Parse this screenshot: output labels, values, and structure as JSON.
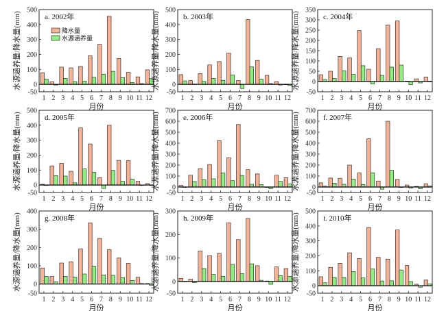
{
  "chart_data": {
    "type": "bar",
    "layout": "3x3 grid",
    "categories": [
      "1",
      "2",
      "3",
      "4",
      "5",
      "6",
      "7",
      "8",
      "9",
      "10",
      "11",
      "12"
    ],
    "xlabel": "月份",
    "ylabel": "水源涵养量/降水量(mm)",
    "legend": {
      "placement": "top-left inside panel a",
      "entries": [
        "降水量",
        "水源涵养量"
      ]
    },
    "colors": {
      "precipitation": "#f7b193",
      "water_conservation": "#8ef07e",
      "edge": "#333333"
    },
    "panels": [
      {
        "title": "a. 2002年",
        "ylim": [
          -50,
          500
        ],
        "yticks": [
          -50,
          0,
          100,
          200,
          300,
          400,
          500
        ],
        "show_legend": true,
        "series": [
          {
            "name": "降水量",
            "values": [
              78,
              17,
              115,
              110,
              120,
              192,
              268,
              455,
              173,
              80,
              50,
              97
            ]
          },
          {
            "name": "水源涵养量",
            "values": [
              35,
              -5,
              40,
              18,
              22,
              47,
              68,
              87,
              45,
              12,
              5,
              38
            ]
          }
        ]
      },
      {
        "title": "b. 2003年",
        "ylim": [
          -50,
          500
        ],
        "yticks": [
          -50,
          0,
          100,
          200,
          300,
          400,
          500
        ],
        "series": [
          {
            "name": "降水量",
            "values": [
              65,
              25,
              72,
              130,
              152,
              210,
              25,
              433,
              160,
              60,
              18,
              0
            ]
          },
          {
            "name": "水源涵养量",
            "values": [
              23,
              2,
              20,
              40,
              27,
              63,
              -28,
              117,
              35,
              5,
              -5,
              -8
            ]
          }
        ]
      },
      {
        "title": "c. 2004年",
        "ylim": [
          -50,
          350
        ],
        "yticks": [
          -50,
          0,
          50,
          100,
          150,
          200,
          250,
          300,
          350
        ],
        "series": [
          {
            "name": "降水量",
            "values": [
              33,
              50,
              122,
              115,
              248,
              60,
              160,
              275,
              295,
              2,
              13,
              22
            ]
          },
          {
            "name": "水源涵养量",
            "values": [
              10,
              15,
              52,
              35,
              77,
              -12,
              30,
              70,
              80,
              -15,
              -7,
              0
            ]
          }
        ]
      },
      {
        "title": "d. 2005年",
        "ylim": [
          -50,
          500
        ],
        "yticks": [
          -50,
          0,
          100,
          200,
          300,
          400,
          500
        ],
        "series": [
          {
            "name": "降水量",
            "values": [
              5,
              128,
              145,
              92,
              382,
              275,
              50,
              400,
              165,
              163,
              25,
              10
            ]
          },
          {
            "name": "水源涵养量",
            "values": [
              -3,
              63,
              60,
              15,
              108,
              85,
              -23,
              98,
              25,
              40,
              0,
              0
            ]
          }
        ]
      },
      {
        "title": "e. 2006年",
        "ylim": [
          -50,
          700
        ],
        "yticks": [
          -50,
          0,
          100,
          200,
          300,
          400,
          500,
          600,
          700
        ],
        "series": [
          {
            "name": "降水量",
            "values": [
              15,
              108,
              168,
              205,
              422,
              268,
              570,
              158,
              120,
              0,
              108,
              85
            ]
          },
          {
            "name": "水源涵养量",
            "values": [
              -3,
              50,
              68,
              75,
              128,
              58,
              105,
              25,
              22,
              -15,
              52,
              28
            ]
          }
        ]
      },
      {
        "title": "f. 2007年",
        "ylim": [
          -50,
          700
        ],
        "yticks": [
          -50,
          0,
          100,
          200,
          300,
          400,
          500,
          600,
          700
        ],
        "series": [
          {
            "name": "降水量",
            "values": [
              38,
              82,
              80,
              200,
              130,
              440,
              55,
              600,
              70,
              18,
              5,
              30
            ]
          },
          {
            "name": "水源涵养量",
            "values": [
              8,
              35,
              25,
              72,
              22,
              130,
              -20,
              152,
              -3,
              -10,
              -15,
              10
            ]
          }
        ]
      },
      {
        "title": "g. 2008年",
        "ylim": [
          -50,
          400
        ],
        "yticks": [
          -50,
          0,
          100,
          200,
          300,
          400
        ],
        "series": [
          {
            "name": "降水量",
            "values": [
              88,
              42,
              115,
              122,
              193,
              335,
              250,
              188,
              143,
              113,
              37,
              3
            ]
          },
          {
            "name": "水源涵养量",
            "values": [
              42,
              13,
              42,
              38,
              55,
              98,
              50,
              48,
              35,
              20,
              3,
              -7
            ]
          }
        ]
      },
      {
        "title": "h. 2009年",
        "ylim": [
          -50,
          300
        ],
        "yticks": [
          -50,
          0,
          100,
          200,
          300
        ],
        "series": [
          {
            "name": "降水量",
            "values": [
              13,
              10,
              130,
              110,
              120,
              250,
              178,
              268,
              67,
              2,
              62,
              55
            ]
          },
          {
            "name": "水源涵养量",
            "values": [
              0,
              -5,
              55,
              30,
              22,
              73,
              33,
              75,
              5,
              -12,
              25,
              22
            ]
          }
        ]
      },
      {
        "title": "i. 2010年",
        "ylim": [
          -50,
          500
        ],
        "yticks": [
          -50,
          0,
          100,
          200,
          300,
          400,
          500
        ],
        "series": [
          {
            "name": "降水量",
            "values": [
              60,
              123,
              150,
              220,
              182,
              390,
              190,
              178,
              373,
              135,
              10,
              38
            ]
          },
          {
            "name": "水源涵养量",
            "values": [
              20,
              55,
              55,
              95,
              52,
              112,
              32,
              33,
              105,
              28,
              -10,
              12
            ]
          }
        ]
      }
    ]
  }
}
